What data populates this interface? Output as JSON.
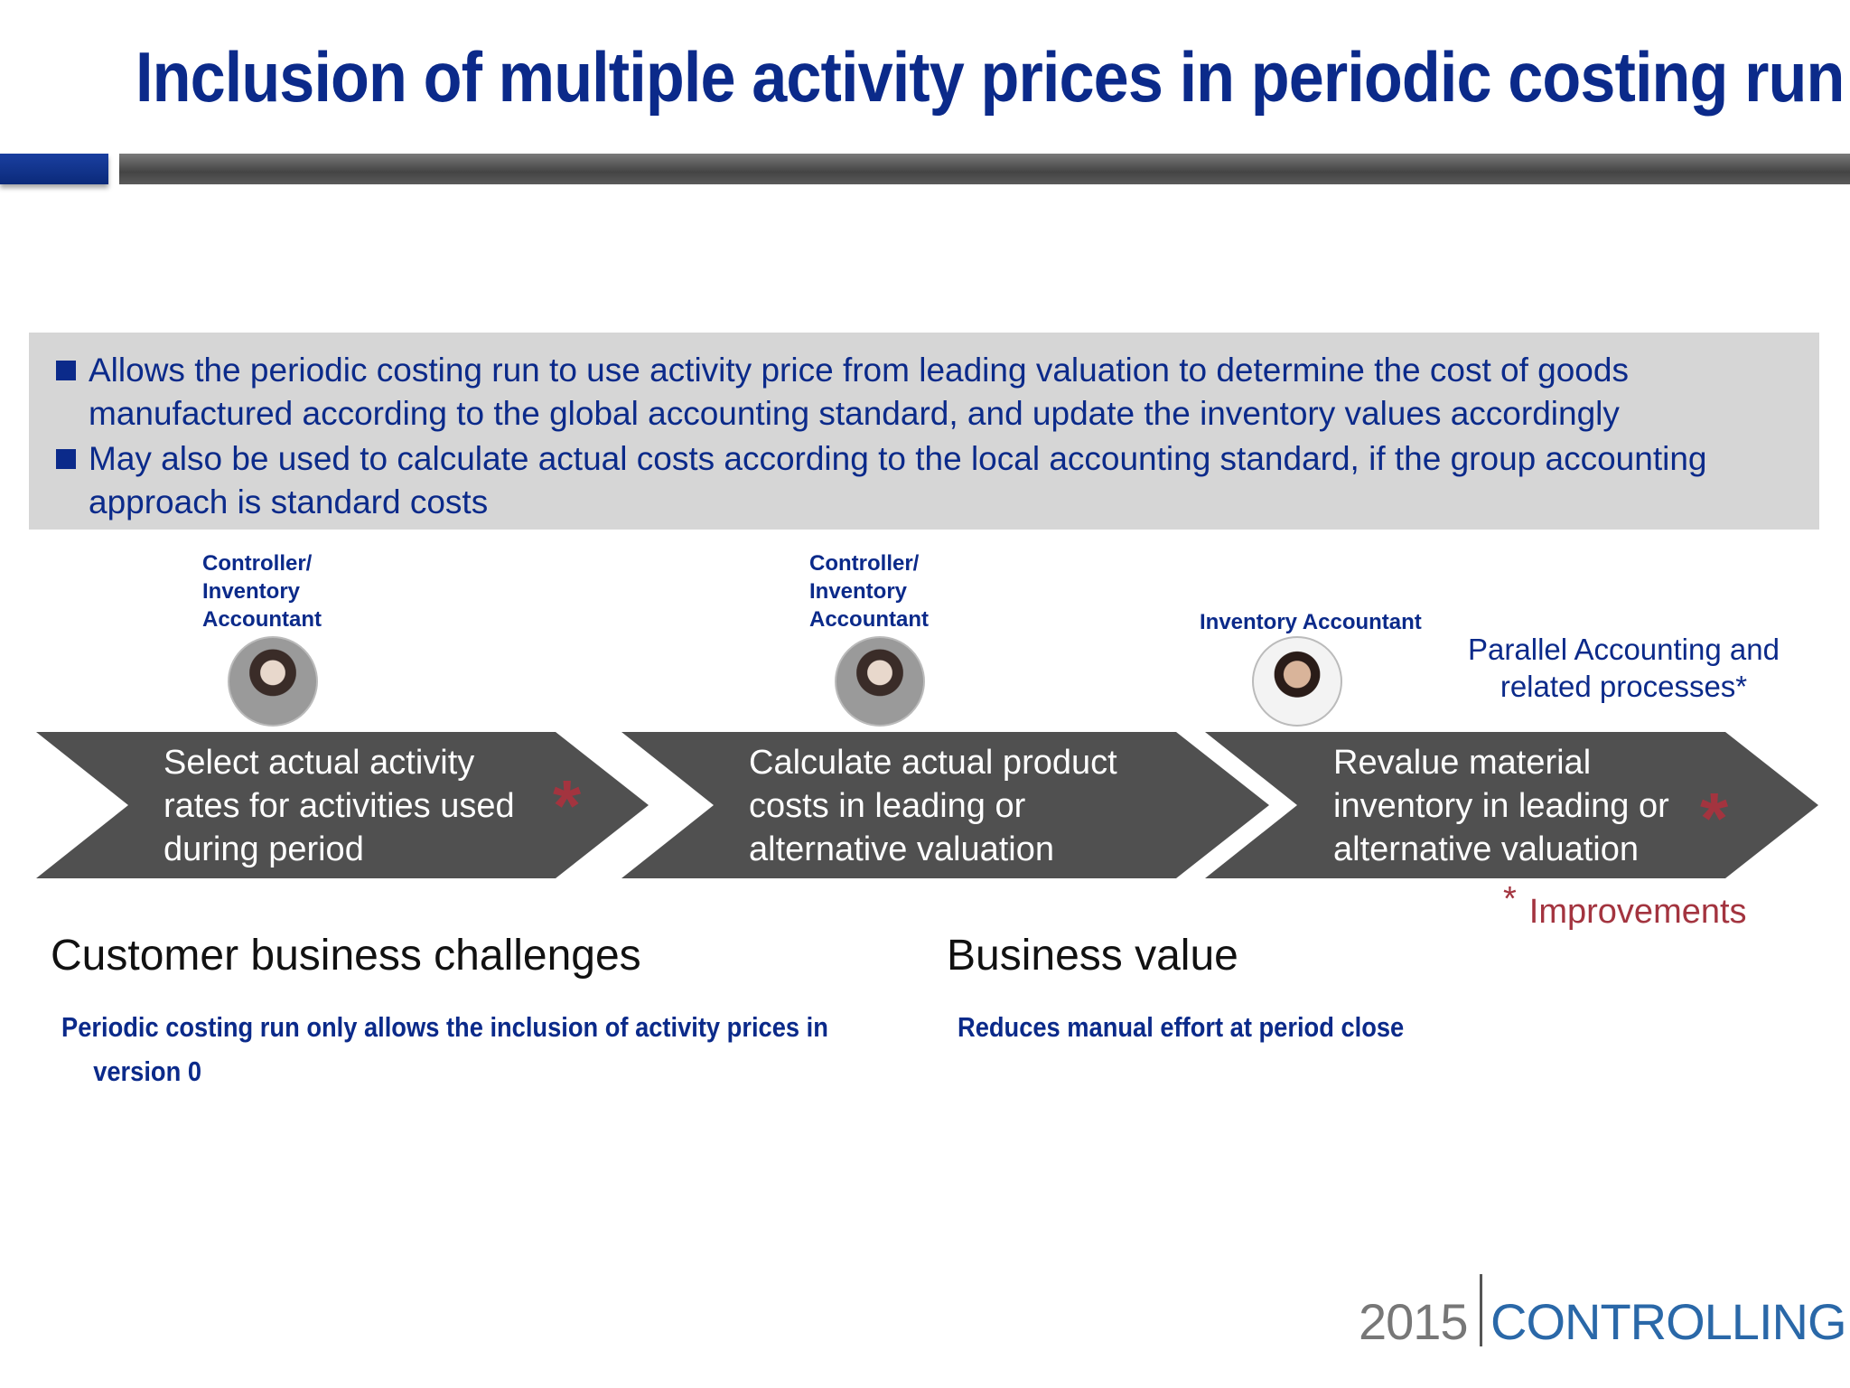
{
  "title": "Inclusion of multiple activity prices in periodic costing run",
  "bullets": [
    "Allows the periodic costing run to use activity price from leading valuation to determine the cost of goods manufactured according to the global accounting standard, and update the inventory values accordingly",
    "May also be used to calculate actual costs according to the local accounting standard, if the group accounting approach is standard costs"
  ],
  "roles": {
    "role1": [
      "Controller/",
      "Inventory",
      "Accountant"
    ],
    "role2": [
      "Controller/",
      "Inventory",
      "Accountant"
    ],
    "role3": "Inventory Accountant"
  },
  "parallel_label": [
    "Parallel Accounting and",
    "related processes*"
  ],
  "steps": [
    [
      "Select actual activity",
      "rates for activities used",
      "during period"
    ],
    [
      "Calculate actual product",
      "costs in leading or",
      "alternative valuation"
    ],
    [
      "Revalue material",
      "inventory in leading or",
      "alternative valuation"
    ]
  ],
  "star_glyph": "*",
  "improvements": {
    "asterisk": "*",
    "label": "Improvements"
  },
  "challenges": {
    "heading": "Customer business challenges",
    "line1": "Periodic costing run only allows the inclusion of activity prices in",
    "line2": "version 0"
  },
  "value": {
    "heading": "Business value",
    "text": "Reduces manual effort at period close"
  },
  "logo": {
    "year": "2015",
    "word": "CONTROLLING"
  },
  "colors": {
    "title_blue": "#0b2a8a",
    "chevron_gray": "#505050",
    "accent_red": "#a3343f",
    "bullet_bg": "#d6d6d6"
  }
}
